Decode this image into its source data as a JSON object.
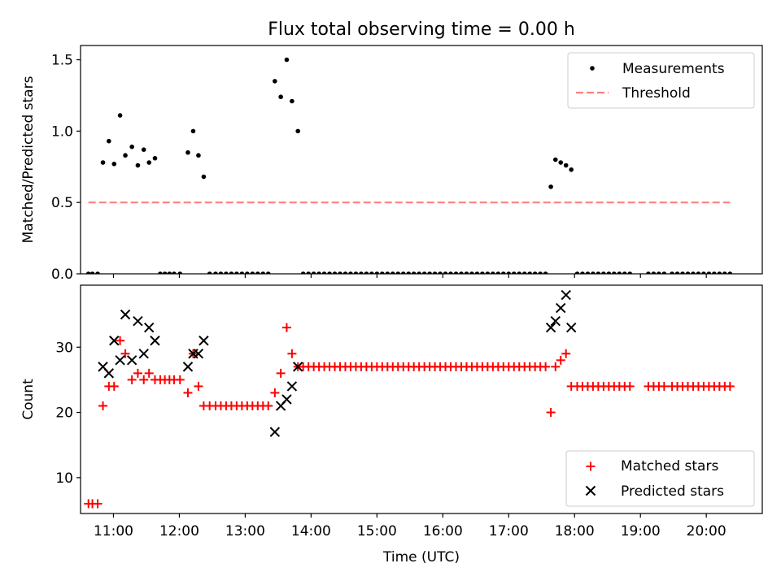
{
  "title": "Flux total observing time = 0.00 h",
  "chart_data": [
    {
      "type": "scatter",
      "ylabel": "Matched/Predicted stars",
      "xlim": [
        10.5,
        20.85
      ],
      "ylim": [
        0,
        1.6
      ],
      "yticks": [
        0.0,
        0.5,
        1.0,
        1.5
      ],
      "yticklabels": [
        "0.0",
        "0.5",
        "1.0",
        "1.5"
      ],
      "legend_position": "top-right",
      "colors": {
        "measurements": "#000000",
        "threshold": "#ff7f7f"
      },
      "series": [
        {
          "name": "Measurements",
          "points": [
            [
              10.62,
              0
            ],
            [
              10.68,
              0
            ],
            [
              10.76,
              0
            ],
            [
              10.84,
              0.78
            ],
            [
              10.93,
              0.93
            ],
            [
              11.01,
              0.77
            ],
            [
              11.1,
              1.11
            ],
            [
              11.18,
              0.83
            ],
            [
              11.28,
              0.89
            ],
            [
              11.37,
              0.76
            ],
            [
              11.46,
              0.87
            ],
            [
              11.54,
              0.78
            ],
            [
              11.63,
              0.81
            ],
            [
              11.71,
              0
            ],
            [
              11.78,
              0
            ],
            [
              11.85,
              0
            ],
            [
              11.92,
              0
            ],
            [
              12.01,
              0
            ],
            [
              12.13,
              0.85
            ],
            [
              12.21,
              1.0
            ],
            [
              12.29,
              0.83
            ],
            [
              12.37,
              0.68
            ],
            [
              12.46,
              0
            ],
            [
              12.55,
              0
            ],
            [
              12.63,
              0
            ],
            [
              12.71,
              0
            ],
            [
              12.79,
              0
            ],
            [
              12.87,
              0
            ],
            [
              12.95,
              0
            ],
            [
              13.03,
              0
            ],
            [
              13.11,
              0
            ],
            [
              13.19,
              0
            ],
            [
              13.27,
              0
            ],
            [
              13.35,
              0
            ],
            [
              13.45,
              1.35
            ],
            [
              13.54,
              1.24
            ],
            [
              13.63,
              1.5
            ],
            [
              13.71,
              1.21
            ],
            [
              13.8,
              1.0
            ],
            [
              13.88,
              0
            ],
            [
              13.96,
              0
            ],
            [
              14.04,
              0
            ],
            [
              14.12,
              0
            ],
            [
              14.2,
              0
            ],
            [
              14.28,
              0
            ],
            [
              14.36,
              0
            ],
            [
              14.44,
              0
            ],
            [
              14.52,
              0
            ],
            [
              14.6,
              0
            ],
            [
              14.68,
              0
            ],
            [
              14.76,
              0
            ],
            [
              14.84,
              0
            ],
            [
              14.92,
              0
            ],
            [
              15.0,
              0
            ],
            [
              15.08,
              0
            ],
            [
              15.16,
              0
            ],
            [
              15.24,
              0
            ],
            [
              15.32,
              0
            ],
            [
              15.4,
              0
            ],
            [
              15.48,
              0
            ],
            [
              15.56,
              0
            ],
            [
              15.64,
              0
            ],
            [
              15.72,
              0
            ],
            [
              15.8,
              0
            ],
            [
              15.88,
              0
            ],
            [
              15.96,
              0
            ],
            [
              16.04,
              0
            ],
            [
              16.12,
              0
            ],
            [
              16.2,
              0
            ],
            [
              16.28,
              0
            ],
            [
              16.36,
              0
            ],
            [
              16.44,
              0
            ],
            [
              16.52,
              0
            ],
            [
              16.6,
              0
            ],
            [
              16.68,
              0
            ],
            [
              16.76,
              0
            ],
            [
              16.84,
              0
            ],
            [
              16.92,
              0
            ],
            [
              17.0,
              0
            ],
            [
              17.08,
              0
            ],
            [
              17.16,
              0
            ],
            [
              17.24,
              0
            ],
            [
              17.32,
              0
            ],
            [
              17.4,
              0
            ],
            [
              17.48,
              0
            ],
            [
              17.56,
              0
            ],
            [
              17.64,
              0.61
            ],
            [
              17.71,
              0.8
            ],
            [
              17.79,
              0.78
            ],
            [
              17.87,
              0.76
            ],
            [
              17.95,
              0.73
            ],
            [
              18.04,
              0
            ],
            [
              18.12,
              0
            ],
            [
              18.2,
              0
            ],
            [
              18.28,
              0
            ],
            [
              18.36,
              0
            ],
            [
              18.44,
              0
            ],
            [
              18.52,
              0
            ],
            [
              18.6,
              0
            ],
            [
              18.68,
              0
            ],
            [
              18.76,
              0
            ],
            [
              18.84,
              0
            ],
            [
              19.12,
              0
            ],
            [
              19.2,
              0
            ],
            [
              19.28,
              0
            ],
            [
              19.36,
              0
            ],
            [
              19.48,
              0
            ],
            [
              19.56,
              0
            ],
            [
              19.64,
              0
            ],
            [
              19.72,
              0
            ],
            [
              19.8,
              0
            ],
            [
              19.88,
              0
            ],
            [
              19.96,
              0
            ],
            [
              20.04,
              0
            ],
            [
              20.12,
              0
            ],
            [
              20.2,
              0
            ],
            [
              20.28,
              0
            ],
            [
              20.36,
              0
            ]
          ]
        },
        {
          "name": "Threshold",
          "style": "dashed",
          "x": [
            10.62,
            20.36
          ],
          "y": [
            0.5,
            0.5
          ]
        }
      ]
    },
    {
      "type": "scatter",
      "xlabel": "Time (UTC)",
      "ylabel": "Count",
      "xlim": [
        10.5,
        20.85
      ],
      "ylim": [
        4.5,
        39.5
      ],
      "xticks": [
        11,
        12,
        13,
        14,
        15,
        16,
        17,
        18,
        19,
        20
      ],
      "xticklabels": [
        "11:00",
        "12:00",
        "13:00",
        "14:00",
        "15:00",
        "16:00",
        "17:00",
        "18:00",
        "19:00",
        "20:00"
      ],
      "yticks": [
        10,
        20,
        30
      ],
      "yticklabels": [
        "10",
        "20",
        "30"
      ],
      "legend_position": "bottom-right",
      "colors": {
        "matched": "#ff0000",
        "predicted": "#000000"
      },
      "series": [
        {
          "name": "Matched stars",
          "marker": "+",
          "points": [
            [
              10.62,
              6
            ],
            [
              10.68,
              6
            ],
            [
              10.76,
              6
            ],
            [
              10.84,
              21
            ],
            [
              10.93,
              24
            ],
            [
              11.01,
              24
            ],
            [
              11.1,
              31
            ],
            [
              11.18,
              29
            ],
            [
              11.28,
              25
            ],
            [
              11.37,
              26
            ],
            [
              11.46,
              25
            ],
            [
              11.54,
              26
            ],
            [
              11.63,
              25
            ],
            [
              11.71,
              25
            ],
            [
              11.78,
              25
            ],
            [
              11.85,
              25
            ],
            [
              11.92,
              25
            ],
            [
              12.01,
              25
            ],
            [
              12.13,
              23
            ],
            [
              12.21,
              29
            ],
            [
              12.29,
              24
            ],
            [
              12.37,
              21
            ],
            [
              12.46,
              21
            ],
            [
              12.55,
              21
            ],
            [
              12.63,
              21
            ],
            [
              12.71,
              21
            ],
            [
              12.79,
              21
            ],
            [
              12.87,
              21
            ],
            [
              12.95,
              21
            ],
            [
              13.03,
              21
            ],
            [
              13.11,
              21
            ],
            [
              13.19,
              21
            ],
            [
              13.27,
              21
            ],
            [
              13.35,
              21
            ],
            [
              13.45,
              23
            ],
            [
              13.54,
              26
            ],
            [
              13.63,
              33
            ],
            [
              13.71,
              29
            ],
            [
              13.8,
              27
            ],
            [
              13.88,
              27
            ],
            [
              13.96,
              27
            ],
            [
              14.04,
              27
            ],
            [
              14.12,
              27
            ],
            [
              14.2,
              27
            ],
            [
              14.28,
              27
            ],
            [
              14.36,
              27
            ],
            [
              14.44,
              27
            ],
            [
              14.52,
              27
            ],
            [
              14.6,
              27
            ],
            [
              14.68,
              27
            ],
            [
              14.76,
              27
            ],
            [
              14.84,
              27
            ],
            [
              14.92,
              27
            ],
            [
              15.0,
              27
            ],
            [
              15.08,
              27
            ],
            [
              15.16,
              27
            ],
            [
              15.24,
              27
            ],
            [
              15.32,
              27
            ],
            [
              15.4,
              27
            ],
            [
              15.48,
              27
            ],
            [
              15.56,
              27
            ],
            [
              15.64,
              27
            ],
            [
              15.72,
              27
            ],
            [
              15.8,
              27
            ],
            [
              15.88,
              27
            ],
            [
              15.96,
              27
            ],
            [
              16.04,
              27
            ],
            [
              16.12,
              27
            ],
            [
              16.2,
              27
            ],
            [
              16.28,
              27
            ],
            [
              16.36,
              27
            ],
            [
              16.44,
              27
            ],
            [
              16.52,
              27
            ],
            [
              16.6,
              27
            ],
            [
              16.68,
              27
            ],
            [
              16.76,
              27
            ],
            [
              16.84,
              27
            ],
            [
              16.92,
              27
            ],
            [
              17.0,
              27
            ],
            [
              17.08,
              27
            ],
            [
              17.16,
              27
            ],
            [
              17.24,
              27
            ],
            [
              17.32,
              27
            ],
            [
              17.4,
              27
            ],
            [
              17.48,
              27
            ],
            [
              17.56,
              27
            ],
            [
              17.64,
              20
            ],
            [
              17.71,
              27
            ],
            [
              17.79,
              28
            ],
            [
              17.87,
              29
            ],
            [
              17.95,
              24
            ],
            [
              18.04,
              24
            ],
            [
              18.12,
              24
            ],
            [
              18.2,
              24
            ],
            [
              18.28,
              24
            ],
            [
              18.36,
              24
            ],
            [
              18.44,
              24
            ],
            [
              18.52,
              24
            ],
            [
              18.6,
              24
            ],
            [
              18.68,
              24
            ],
            [
              18.76,
              24
            ],
            [
              18.84,
              24
            ],
            [
              19.12,
              24
            ],
            [
              19.2,
              24
            ],
            [
              19.28,
              24
            ],
            [
              19.36,
              24
            ],
            [
              19.48,
              24
            ],
            [
              19.56,
              24
            ],
            [
              19.64,
              24
            ],
            [
              19.72,
              24
            ],
            [
              19.8,
              24
            ],
            [
              19.88,
              24
            ],
            [
              19.96,
              24
            ],
            [
              20.04,
              24
            ],
            [
              20.12,
              24
            ],
            [
              20.2,
              24
            ],
            [
              20.28,
              24
            ],
            [
              20.36,
              24
            ]
          ]
        },
        {
          "name": "Predicted stars",
          "marker": "x",
          "points": [
            [
              10.84,
              27
            ],
            [
              10.93,
              26
            ],
            [
              11.01,
              31
            ],
            [
              11.1,
              28
            ],
            [
              11.18,
              35
            ],
            [
              11.28,
              28
            ],
            [
              11.37,
              34
            ],
            [
              11.46,
              29
            ],
            [
              11.54,
              33
            ],
            [
              11.63,
              31
            ],
            [
              12.13,
              27
            ],
            [
              12.21,
              29
            ],
            [
              12.29,
              29
            ],
            [
              12.37,
              31
            ],
            [
              13.45,
              17
            ],
            [
              13.54,
              21
            ],
            [
              13.63,
              22
            ],
            [
              13.71,
              24
            ],
            [
              13.8,
              27
            ],
            [
              17.64,
              33
            ],
            [
              17.71,
              34
            ],
            [
              17.79,
              36
            ],
            [
              17.87,
              38
            ],
            [
              17.95,
              33
            ]
          ]
        }
      ]
    }
  ]
}
